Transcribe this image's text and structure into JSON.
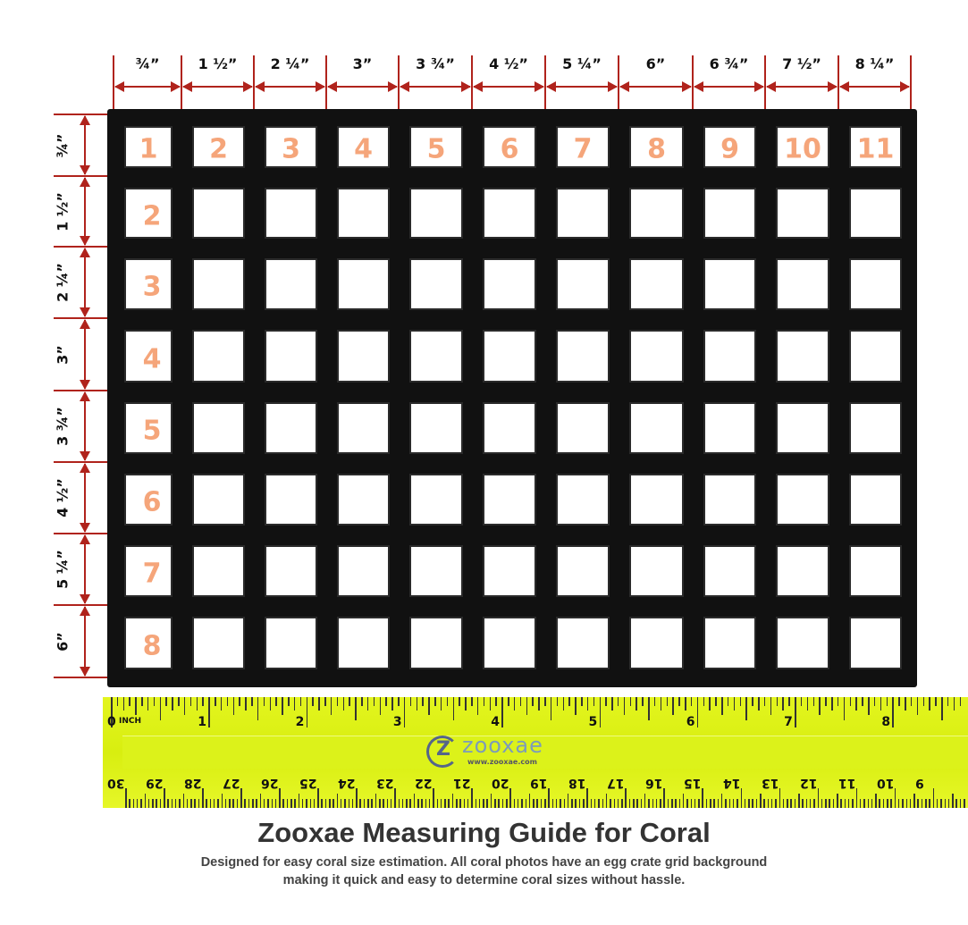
{
  "column_sizes": [
    "¾”",
    "1 ½”",
    "2 ¼”",
    "3”",
    "3 ¾”",
    "4 ½”",
    "5 ¼”",
    "6”",
    "6 ¾”",
    "7 ½”",
    "8 ¼”"
  ],
  "row_sizes": [
    "¾”",
    "1 ½”",
    "2 ¼”",
    "3”",
    "3 ¾”",
    "4 ½”",
    "5 ¼”",
    "6”"
  ],
  "column_numbers": [
    "1",
    "2",
    "3",
    "4",
    "5",
    "6",
    "7",
    "8",
    "9",
    "10",
    "11"
  ],
  "row_numbers": [
    "2",
    "3",
    "4",
    "5",
    "6",
    "7",
    "8"
  ],
  "ruler": {
    "inch_labels": [
      "0",
      "1",
      "2",
      "3",
      "4",
      "5",
      "6",
      "7",
      "8"
    ],
    "unit_label": "INCH",
    "cm_labels": [
      "30",
      "29",
      "28",
      "27",
      "26",
      "25",
      "24",
      "23",
      "22",
      "21",
      "20",
      "19",
      "18",
      "17",
      "16",
      "15",
      "14",
      "13",
      "12",
      "11",
      "10",
      "9"
    ],
    "logo_text": "zooxae",
    "logo_url_text": "www.zooxae.com",
    "color": "#e3f51e"
  },
  "colors": {
    "arrow": "#b0231c",
    "number": "#f5a57a",
    "grid": "#111111"
  },
  "title": "Zooxae Measuring Guide for Coral",
  "subtitle_line1": "Designed for easy coral size estimation. All coral photos have an egg crate grid background",
  "subtitle_line2": "making it quick and easy to determine coral sizes without hassle."
}
